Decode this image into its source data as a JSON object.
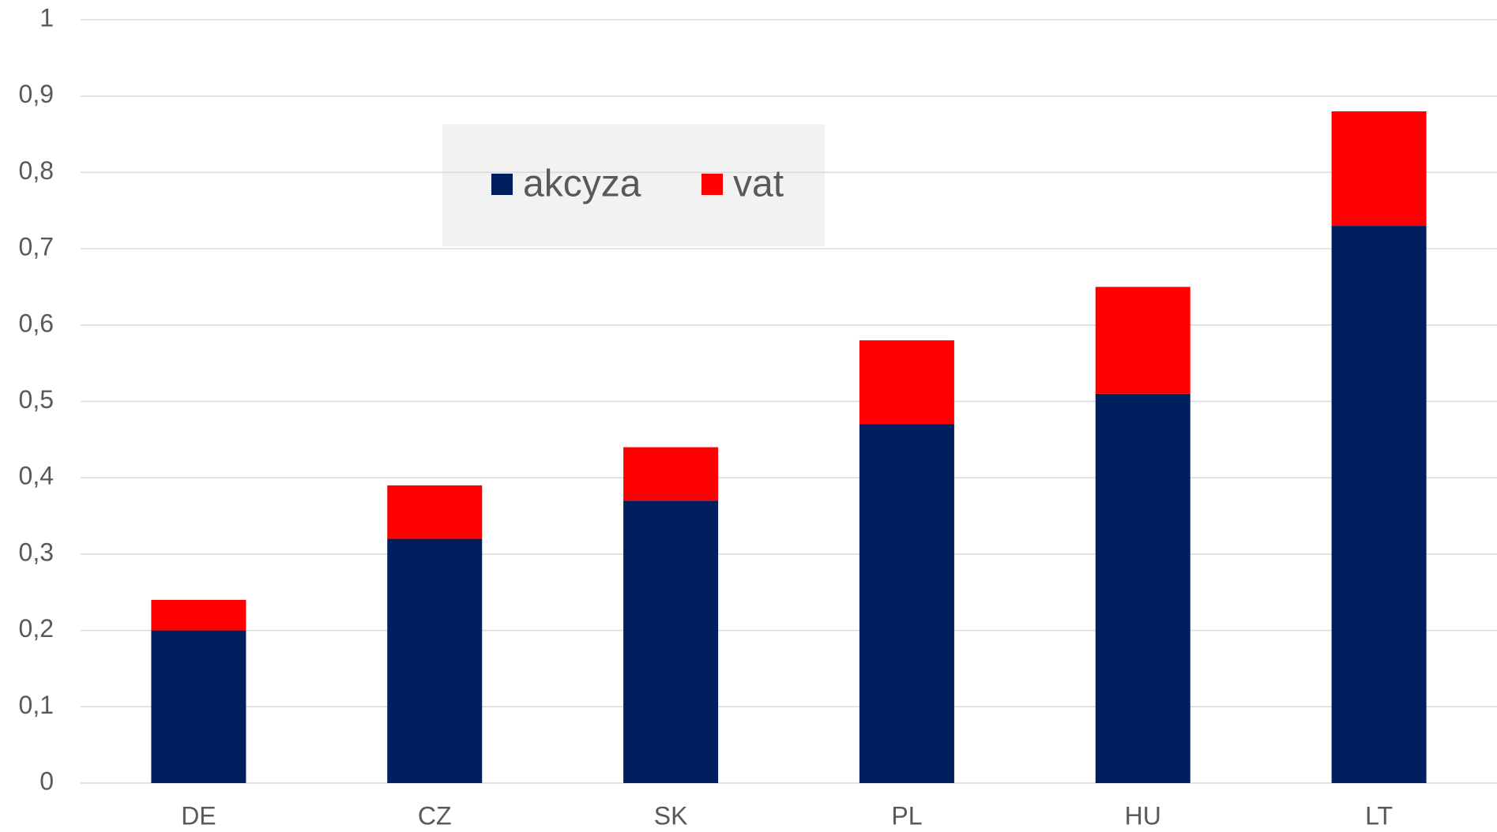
{
  "chart_data": {
    "type": "stacked_bar",
    "categories": [
      "DE",
      "CZ",
      "SK",
      "PL",
      "HU",
      "LT"
    ],
    "series": [
      {
        "name": "akcyza",
        "color": "#001f5f",
        "values": [
          0.2,
          0.32,
          0.37,
          0.47,
          0.51,
          0.73
        ]
      },
      {
        "name": "vat",
        "color": "#ff0000",
        "values": [
          0.04,
          0.07,
          0.07,
          0.11,
          0.14,
          0.15
        ]
      }
    ],
    "ylim": [
      0,
      1
    ],
    "yticks": [
      0,
      {
        "value": 0.1,
        "label": "0,1"
      },
      {
        "value": 0.2,
        "label": "0,2"
      },
      {
        "value": 0.3,
        "label": "0,3"
      },
      {
        "value": 0.4,
        "label": "0,4"
      },
      {
        "value": 0.5,
        "label": "0,5"
      },
      {
        "value": 0.6,
        "label": "0,6"
      },
      {
        "value": 0.7,
        "label": "0,7"
      },
      {
        "value": 0.8,
        "label": "0,8"
      },
      {
        "value": 0.9,
        "label": "0,9"
      },
      1
    ],
    "grid": true,
    "legend": "top"
  }
}
